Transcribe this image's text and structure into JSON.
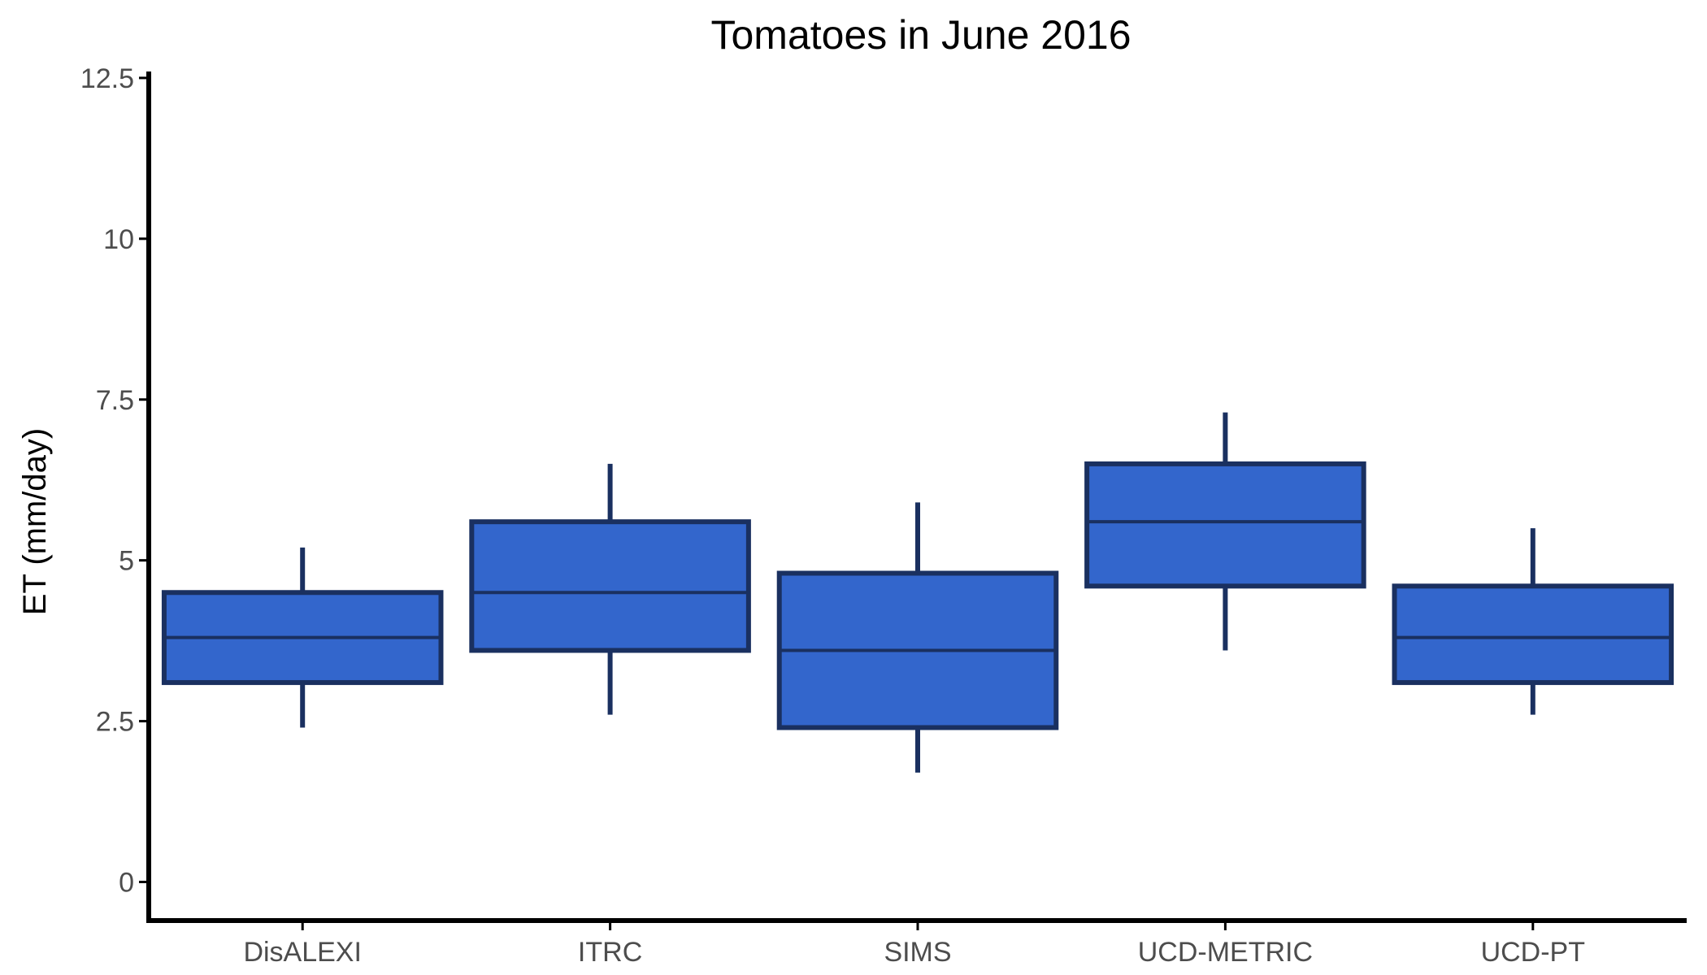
{
  "colors": {
    "box_fill": "#3366cc",
    "box_stroke": "#1a3060",
    "axis": "#000000",
    "tick_text": "#4d4d4d"
  },
  "chart_data": {
    "type": "boxplot",
    "title": "Tomatoes in June 2016",
    "xlabel": "",
    "ylabel": "ET (mm/day)",
    "ylim": [
      -0.6,
      12.6
    ],
    "yticks": [
      0,
      2.5,
      5,
      7.5,
      10,
      12.5
    ],
    "ytick_labels": [
      "0",
      "2.5",
      "5",
      "7.5",
      "10",
      "12.5"
    ],
    "grid": false,
    "categories": [
      "DisALEXI",
      "ITRC",
      "SIMS",
      "UCD-METRIC",
      "UCD-PT"
    ],
    "boxes": [
      {
        "category": "DisALEXI",
        "min": 2.4,
        "q1": 3.1,
        "median": 3.8,
        "q3": 4.5,
        "max": 5.2
      },
      {
        "category": "ITRC",
        "min": 2.6,
        "q1": 3.6,
        "median": 4.5,
        "q3": 5.6,
        "max": 6.5
      },
      {
        "category": "SIMS",
        "min": 1.7,
        "q1": 2.4,
        "median": 3.6,
        "q3": 4.8,
        "max": 5.9
      },
      {
        "category": "UCD-METRIC",
        "min": 3.6,
        "q1": 4.6,
        "median": 5.6,
        "q3": 6.5,
        "max": 7.3
      },
      {
        "category": "UCD-PT",
        "min": 2.6,
        "q1": 3.1,
        "median": 3.8,
        "q3": 4.6,
        "max": 5.5
      }
    ]
  }
}
